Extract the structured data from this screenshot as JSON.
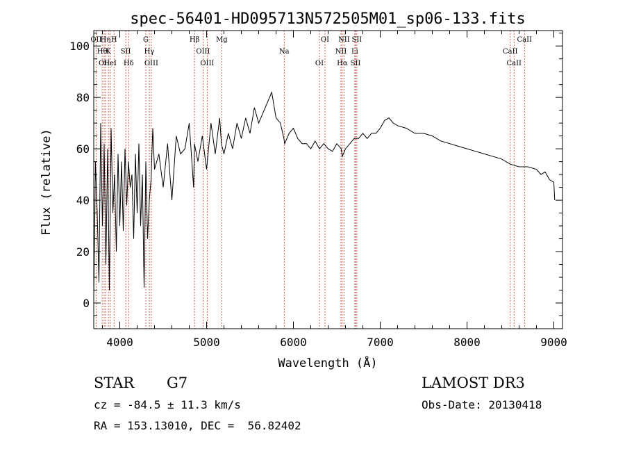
{
  "chart_data": {
    "type": "line",
    "title": "spec-56401-HD095713N572505M01_sp06-133.fits",
    "xlabel": "Wavelength (Å)",
    "ylabel": "Flux (relative)",
    "xlim": [
      3700,
      9100
    ],
    "ylim": [
      -10,
      106
    ],
    "xticks": [
      4000,
      5000,
      6000,
      7000,
      8000,
      9000
    ],
    "yticks": [
      0,
      20,
      40,
      60,
      80,
      100
    ],
    "grid": false,
    "series": [
      {
        "name": "flux",
        "color": "#000000",
        "x": [
          3700,
          3720,
          3740,
          3760,
          3780,
          3800,
          3820,
          3840,
          3860,
          3880,
          3900,
          3920,
          3940,
          3960,
          3980,
          4000,
          4020,
          4040,
          4060,
          4080,
          4100,
          4120,
          4140,
          4160,
          4180,
          4200,
          4220,
          4240,
          4260,
          4280,
          4300,
          4320,
          4340,
          4360,
          4380,
          4400,
          4450,
          4500,
          4550,
          4600,
          4650,
          4700,
          4750,
          4800,
          4850,
          4860,
          4900,
          4950,
          5000,
          5050,
          5100,
          5150,
          5170,
          5200,
          5250,
          5300,
          5350,
          5400,
          5450,
          5500,
          5550,
          5600,
          5650,
          5700,
          5750,
          5800,
          5850,
          5890,
          5900,
          5950,
          6000,
          6050,
          6100,
          6150,
          6200,
          6250,
          6300,
          6350,
          6400,
          6450,
          6500,
          6550,
          6563,
          6600,
          6650,
          6700,
          6750,
          6800,
          6850,
          6900,
          6950,
          7000,
          7050,
          7100,
          7150,
          7200,
          7300,
          7400,
          7500,
          7600,
          7700,
          7800,
          7900,
          8000,
          8100,
          8200,
          8300,
          8400,
          8500,
          8600,
          8700,
          8800,
          8850,
          8900,
          8950,
          9000,
          9010
        ],
        "y": [
          2,
          55,
          35,
          8,
          70,
          30,
          62,
          15,
          60,
          5,
          68,
          35,
          50,
          20,
          58,
          30,
          55,
          28,
          60,
          38,
          55,
          45,
          50,
          25,
          58,
          35,
          62,
          30,
          50,
          6,
          55,
          25,
          40,
          48,
          68,
          52,
          58,
          45,
          62,
          40,
          65,
          58,
          60,
          70,
          45,
          62,
          55,
          65,
          52,
          70,
          58,
          72,
          62,
          58,
          66,
          60,
          70,
          64,
          72,
          66,
          76,
          70,
          74,
          78,
          82,
          72,
          70,
          64,
          62,
          66,
          68,
          64,
          62,
          62,
          60,
          63,
          60,
          62,
          60,
          59,
          62,
          60,
          57,
          60,
          62,
          64,
          64,
          66,
          64,
          66,
          66,
          68,
          71,
          72,
          70,
          69,
          68,
          66,
          66,
          65,
          63,
          62,
          61,
          60,
          59,
          58,
          57,
          56,
          54,
          53,
          53,
          52,
          50,
          51,
          48,
          47,
          40
        ]
      }
    ],
    "lines": [
      {
        "wavelength": 3727,
        "label": "OII"
      },
      {
        "wavelength": 3797,
        "label": "Hθ"
      },
      {
        "wavelength": 3820,
        "label": "OII"
      },
      {
        "wavelength": 3835,
        "label": "Hη"
      },
      {
        "wavelength": 3869,
        "label": "K"
      },
      {
        "wavelength": 3889,
        "label": "HeI"
      },
      {
        "wavelength": 3934,
        "label": "H"
      },
      {
        "wavelength": 4069,
        "label": "SII"
      },
      {
        "wavelength": 4102,
        "label": "Hδ"
      },
      {
        "wavelength": 4300,
        "label": "G"
      },
      {
        "wavelength": 4340,
        "label": "Hγ"
      },
      {
        "wavelength": 4363,
        "label": "OIII"
      },
      {
        "wavelength": 4861,
        "label": "Hβ"
      },
      {
        "wavelength": 4959,
        "label": "OIII"
      },
      {
        "wavelength": 5007,
        "label": "OIII"
      },
      {
        "wavelength": 5175,
        "label": "Mg"
      },
      {
        "wavelength": 5894,
        "label": "Na"
      },
      {
        "wavelength": 6300,
        "label": "OI"
      },
      {
        "wavelength": 6364,
        "label": "OI"
      },
      {
        "wavelength": 6548,
        "label": "NII"
      },
      {
        "wavelength": 6563,
        "label": "Hα"
      },
      {
        "wavelength": 6583,
        "label": "NII"
      },
      {
        "wavelength": 6707,
        "label": "Li"
      },
      {
        "wavelength": 6716,
        "label": "SII"
      },
      {
        "wavelength": 6731,
        "label": "SII"
      },
      {
        "wavelength": 8498,
        "label": "CaII"
      },
      {
        "wavelength": 8542,
        "label": "CaII"
      },
      {
        "wavelength": 8662,
        "label": "CaII"
      }
    ]
  },
  "info": {
    "object_class": "STAR",
    "subclass": "G7",
    "survey": "LAMOST DR3",
    "redshift": "cz = -84.5 ± 11.3 km/s",
    "obs_date": "Obs-Date: 20130418",
    "coords": "RA = 153.13010, DEC =  56.82402"
  }
}
